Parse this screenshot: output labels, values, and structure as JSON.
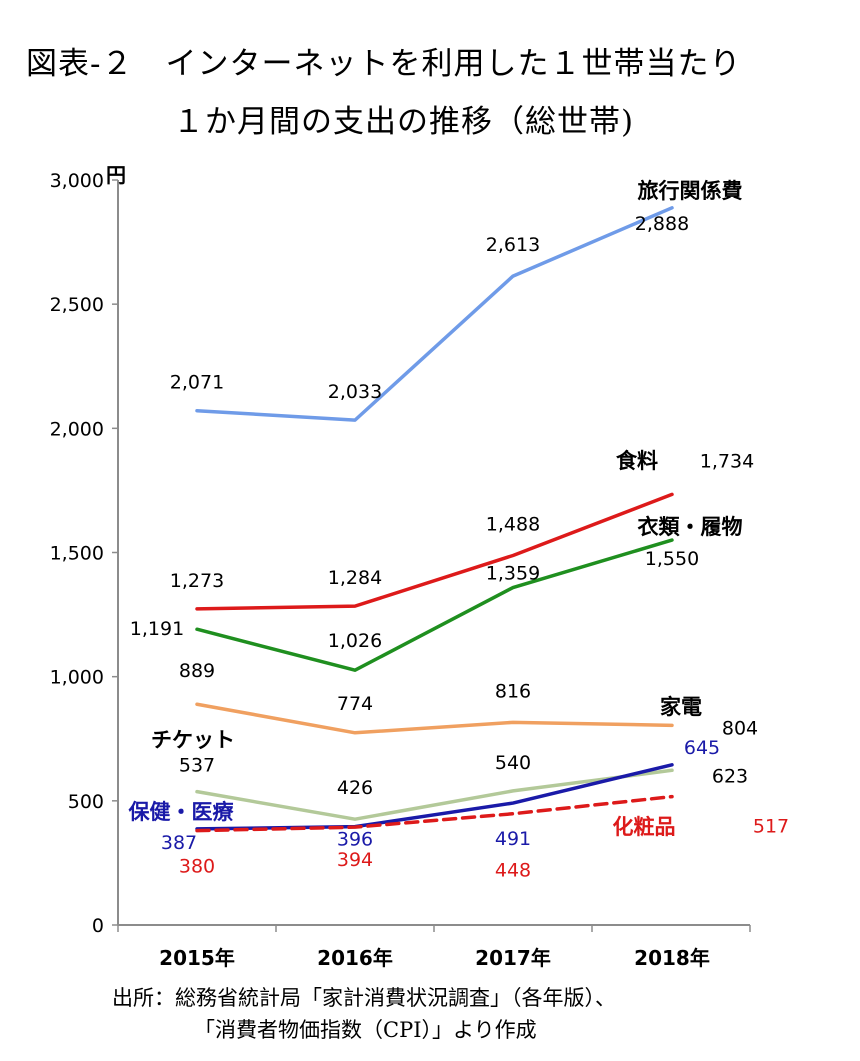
{
  "title": {
    "line1": "図表‐２　インターネットを利用した１世帯当たり",
    "line2": "１か月間の支出の推移（総世帯)"
  },
  "source": {
    "line1": "出所：総務省統計局「家計消費状況調査」（各年版）、",
    "line2": "「消費者物価指数（CPI）」より作成"
  },
  "chart_data": {
    "type": "line",
    "ylabel": "円",
    "ylim": [
      0,
      3000
    ],
    "yticks": [
      "0",
      "500",
      "1,000",
      "1,500",
      "2,000",
      "2,500",
      "3,000"
    ],
    "categories": [
      "2015年",
      "2016年",
      "2017年",
      "2018年"
    ],
    "grid": false,
    "series": [
      {
        "name": "旅行関係費",
        "color": "#6f9be8",
        "dashed": false,
        "values": [
          2071,
          2033,
          2613,
          2888
        ],
        "labels": [
          "2,071",
          "2,033",
          "2,613",
          "2,888"
        ],
        "label_color": "#000000",
        "name_color": "#000000"
      },
      {
        "name": "食料",
        "color": "#dd1a1a",
        "dashed": false,
        "values": [
          1273,
          1284,
          1488,
          1734
        ],
        "labels": [
          "1,273",
          "1,284",
          "1,488",
          "1,734"
        ],
        "label_color": "#000000",
        "name_color": "#000000"
      },
      {
        "name": "衣類・履物",
        "color": "#1f8f1f",
        "dashed": false,
        "values": [
          1191,
          1026,
          1359,
          1550
        ],
        "labels": [
          "1,191",
          "1,026",
          "1,359",
          "1,550"
        ],
        "label_color": "#000000",
        "name_color": "#000000"
      },
      {
        "name": "家電",
        "color": "#f0a060",
        "dashed": false,
        "values": [
          889,
          774,
          816,
          804
        ],
        "labels": [
          "889",
          "774",
          "816",
          "804"
        ],
        "label_color": "#000000",
        "name_color": "#000000"
      },
      {
        "name": "チケット",
        "color": "#b3c999",
        "dashed": false,
        "values": [
          537,
          426,
          540,
          623
        ],
        "labels": [
          "537",
          "426",
          "540",
          "623"
        ],
        "label_color": "#000000",
        "name_color": "#000000"
      },
      {
        "name": "保健・医療",
        "color": "#1a1aa8",
        "dashed": false,
        "values": [
          387,
          396,
          491,
          645
        ],
        "labels": [
          "387",
          "396",
          "491",
          "645"
        ],
        "label_color": "#1a1aa8",
        "name_color": "#1a1aa8"
      },
      {
        "name": "化粧品",
        "color": "#dd1a1a",
        "dashed": true,
        "values": [
          380,
          394,
          448,
          517
        ],
        "labels": [
          "380",
          "394",
          "448",
          "517"
        ],
        "label_color": "#dd1a1a",
        "name_color": "#dd1a1a"
      }
    ]
  }
}
